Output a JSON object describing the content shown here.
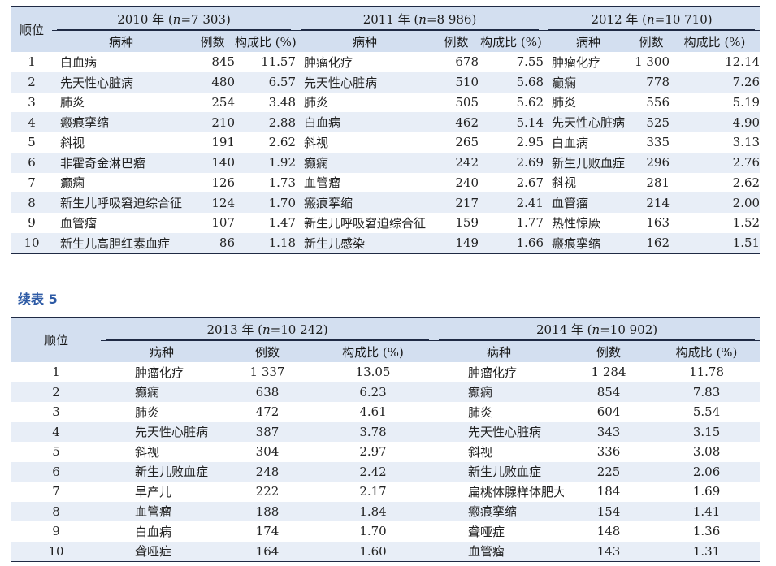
{
  "table1": {
    "rank_label": "顺位",
    "years": [
      "2010 年 (",
      "2011 年 (",
      "2012 年 ("
    ],
    "n_prefix": "n",
    "n_values": [
      "=7 303)",
      "=8 986)",
      "=10 710)"
    ],
    "col_disease": "病种",
    "col_count": "例数",
    "col_ratio": "构成比 (%)",
    "rows": [
      {
        "rank": "1",
        "y2010": [
          "白血病",
          "845",
          "11.57"
        ],
        "y2011": [
          "肿瘤化疗",
          "678",
          "7.55"
        ],
        "y2012": [
          "肿瘤化疗",
          "1 300",
          "12.14"
        ]
      },
      {
        "rank": "2",
        "y2010": [
          "先天性心脏病",
          "480",
          "6.57"
        ],
        "y2011": [
          "先天性心脏病",
          "510",
          "5.68"
        ],
        "y2012": [
          "癫痫",
          "778",
          "7.26"
        ]
      },
      {
        "rank": "3",
        "y2010": [
          "肺炎",
          "254",
          "3.48"
        ],
        "y2011": [
          "肺炎",
          "505",
          "5.62"
        ],
        "y2012": [
          "肺炎",
          "556",
          "5.19"
        ]
      },
      {
        "rank": "4",
        "y2010": [
          "瘢痕挛缩",
          "210",
          "2.88"
        ],
        "y2011": [
          "白血病",
          "462",
          "5.14"
        ],
        "y2012": [
          "先天性心脏病",
          "525",
          "4.90"
        ]
      },
      {
        "rank": "5",
        "y2010": [
          "斜视",
          "191",
          "2.62"
        ],
        "y2011": [
          "斜视",
          "265",
          "2.95"
        ],
        "y2012": [
          "白血病",
          "335",
          "3.13"
        ]
      },
      {
        "rank": "6",
        "y2010": [
          "非霍奇金淋巴瘤",
          "140",
          "1.92"
        ],
        "y2011": [
          "癫痫",
          "242",
          "2.69"
        ],
        "y2012": [
          "新生儿败血症",
          "296",
          "2.76"
        ]
      },
      {
        "rank": "7",
        "y2010": [
          "癫痫",
          "126",
          "1.73"
        ],
        "y2011": [
          "血管瘤",
          "240",
          "2.67"
        ],
        "y2012": [
          "斜视",
          "281",
          "2.62"
        ]
      },
      {
        "rank": "8",
        "y2010": [
          "新生儿呼吸窘迫综合征",
          "124",
          "1.70"
        ],
        "y2011": [
          "瘢痕挛缩",
          "217",
          "2.41"
        ],
        "y2012": [
          "血管瘤",
          "214",
          "2.00"
        ]
      },
      {
        "rank": "9",
        "y2010": [
          "血管瘤",
          "107",
          "1.47"
        ],
        "y2011": [
          "新生儿呼吸窘迫综合征",
          "159",
          "1.77"
        ],
        "y2012": [
          "热性惊厥",
          "163",
          "1.52"
        ]
      },
      {
        "rank": "10",
        "y2010": [
          "新生儿高胆红素血症",
          "86",
          "1.18"
        ],
        "y2011": [
          "新生儿感染",
          "149",
          "1.66"
        ],
        "y2012": [
          "瘢痕挛缩",
          "162",
          "1.51"
        ]
      }
    ]
  },
  "continued_label": "续表 5",
  "table2": {
    "rank_label": "顺位",
    "years": [
      "2013 年 (",
      "2014 年 ("
    ],
    "n_prefix": "n",
    "n_values": [
      "=10 242)",
      "=10 902)"
    ],
    "col_disease": "病种",
    "col_count": "例数",
    "col_ratio": "构成比 (%)",
    "rows": [
      {
        "rank": "1",
        "y2013": [
          "肿瘤化疗",
          "1 337",
          "13.05"
        ],
        "y2014": [
          "肿瘤化疗",
          "1 284",
          "11.78"
        ]
      },
      {
        "rank": "2",
        "y2013": [
          "癫痫",
          "638",
          "6.23"
        ],
        "y2014": [
          "癫痫",
          "854",
          "7.83"
        ]
      },
      {
        "rank": "3",
        "y2013": [
          "肺炎",
          "472",
          "4.61"
        ],
        "y2014": [
          "肺炎",
          "604",
          "5.54"
        ]
      },
      {
        "rank": "4",
        "y2013": [
          "先天性心脏病",
          "387",
          "3.78"
        ],
        "y2014": [
          "先天性心脏病",
          "343",
          "3.15"
        ]
      },
      {
        "rank": "5",
        "y2013": [
          "斜视",
          "304",
          "2.97"
        ],
        "y2014": [
          "斜视",
          "336",
          "3.08"
        ]
      },
      {
        "rank": "6",
        "y2013": [
          "新生儿败血症",
          "248",
          "2.42"
        ],
        "y2014": [
          "新生儿败血症",
          "225",
          "2.06"
        ]
      },
      {
        "rank": "7",
        "y2013": [
          "早产儿",
          "222",
          "2.17"
        ],
        "y2014": [
          "扁桃体腺样体肥大",
          "184",
          "1.69"
        ]
      },
      {
        "rank": "8",
        "y2013": [
          "血管瘤",
          "188",
          "1.84"
        ],
        "y2014": [
          "瘢痕挛缩",
          "154",
          "1.41"
        ]
      },
      {
        "rank": "9",
        "y2013": [
          "白血病",
          "174",
          "1.70"
        ],
        "y2014": [
          "聋哑症",
          "148",
          "1.36"
        ]
      },
      {
        "rank": "10",
        "y2013": [
          "聋哑症",
          "164",
          "1.60"
        ],
        "y2014": [
          "血管瘤",
          "143",
          "1.31"
        ]
      }
    ]
  }
}
